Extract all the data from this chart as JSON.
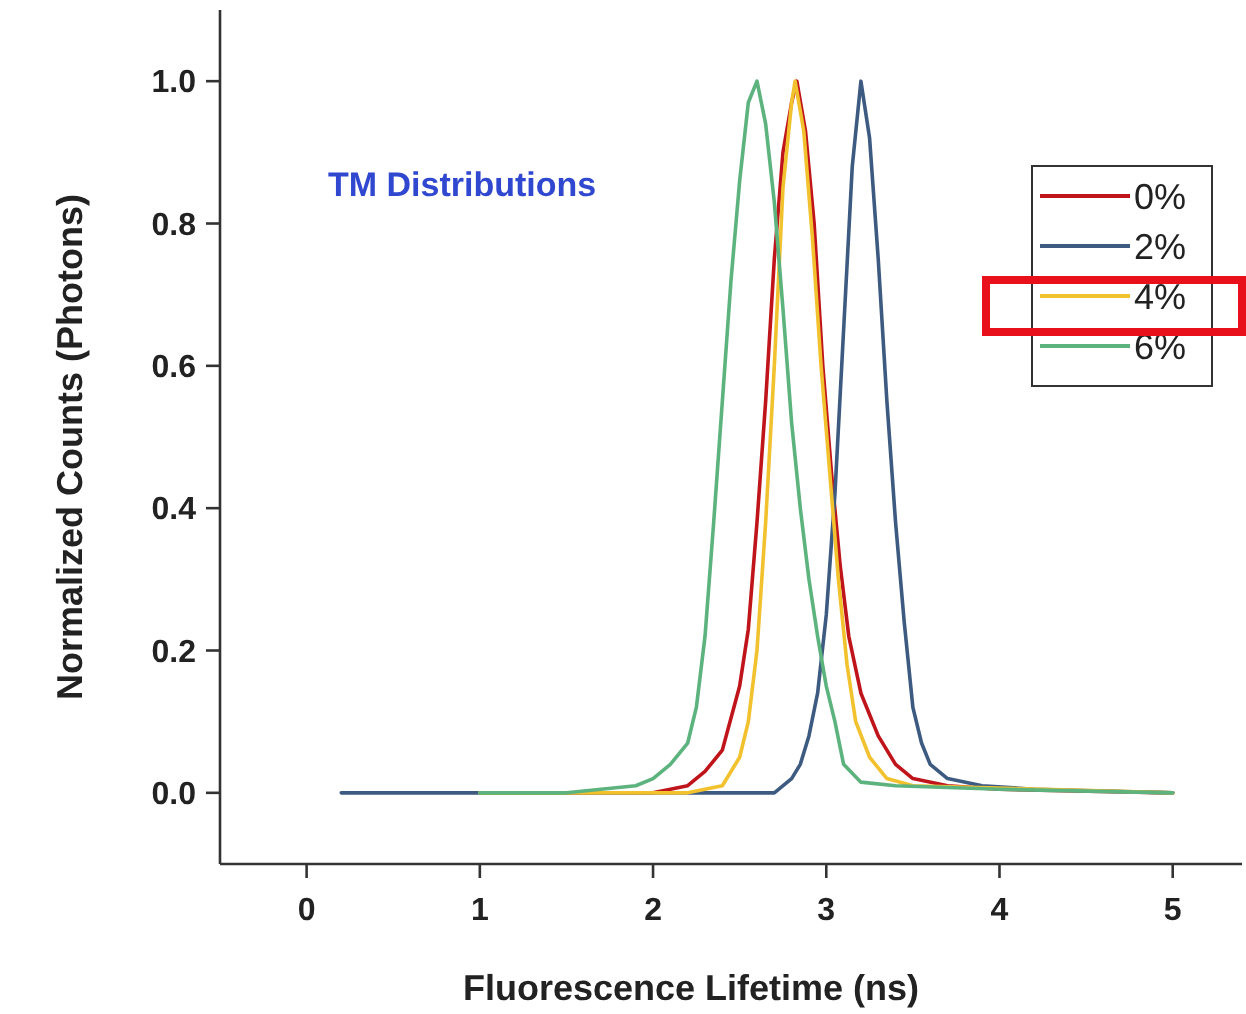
{
  "chart_data": {
    "type": "line",
    "xlabel": "Fluorescence Lifetime (ns)",
    "ylabel": "Normalized Counts (Photons)",
    "annotations": [
      "TM Distributions"
    ],
    "xlim": [
      -0.5,
      5.4
    ],
    "xticks": [
      0,
      1,
      2,
      3,
      4,
      5
    ],
    "ylim": [
      -0.1,
      1.1
    ],
    "yticks": [
      {
        "value": 0,
        "label": "0.0"
      },
      {
        "value": 0.2,
        "label": "0.2"
      },
      {
        "value": 0.4,
        "label": "0.4"
      },
      {
        "value": 0.6,
        "label": "0.6"
      },
      {
        "value": 0.8,
        "label": "0.8"
      },
      {
        "value": 1,
        "label": "1.0"
      }
    ],
    "grid": false,
    "legend": "top right",
    "line_style": "solid",
    "marker": "none",
    "series": [
      {
        "name": "0%",
        "color": "#c0141b",
        "x": [
          1.0,
          2.0,
          2.2,
          2.3,
          2.4,
          2.5,
          2.55,
          2.6,
          2.65,
          2.7,
          2.75,
          2.8,
          2.83,
          2.88,
          2.93,
          2.98,
          3.03,
          3.08,
          3.13,
          3.2,
          3.3,
          3.4,
          3.5,
          3.7,
          4.0,
          5.0
        ],
        "values": [
          0,
          0,
          0.01,
          0.03,
          0.06,
          0.15,
          0.23,
          0.38,
          0.55,
          0.75,
          0.9,
          0.97,
          1.0,
          0.93,
          0.8,
          0.6,
          0.45,
          0.32,
          0.22,
          0.14,
          0.08,
          0.04,
          0.02,
          0.01,
          0.005,
          0
        ]
      },
      {
        "name": "2%",
        "color": "#3d5a80",
        "x": [
          0.2,
          2.7,
          2.8,
          2.85,
          2.9,
          2.95,
          3.0,
          3.05,
          3.1,
          3.15,
          3.2,
          3.25,
          3.3,
          3.35,
          3.4,
          3.45,
          3.5,
          3.55,
          3.6,
          3.7,
          3.9,
          4.2,
          5.0
        ],
        "values": [
          0,
          0,
          0.02,
          0.04,
          0.08,
          0.14,
          0.25,
          0.42,
          0.65,
          0.88,
          1.0,
          0.92,
          0.75,
          0.55,
          0.38,
          0.24,
          0.12,
          0.07,
          0.04,
          0.02,
          0.01,
          0.005,
          0
        ]
      },
      {
        "name": "4%",
        "color": "#f2c12e",
        "x": [
          1.0,
          2.2,
          2.4,
          2.5,
          2.55,
          2.6,
          2.65,
          2.7,
          2.75,
          2.8,
          2.82,
          2.87,
          2.92,
          2.97,
          3.02,
          3.07,
          3.12,
          3.17,
          3.25,
          3.35,
          3.5,
          5.0
        ],
        "values": [
          0,
          0,
          0.01,
          0.05,
          0.1,
          0.2,
          0.38,
          0.6,
          0.85,
          0.97,
          1.0,
          0.93,
          0.78,
          0.6,
          0.45,
          0.3,
          0.18,
          0.1,
          0.05,
          0.02,
          0.01,
          0
        ]
      },
      {
        "name": "6%",
        "color": "#5db37e",
        "x": [
          1.0,
          1.5,
          1.7,
          1.9,
          2.0,
          2.1,
          2.2,
          2.25,
          2.3,
          2.35,
          2.4,
          2.45,
          2.5,
          2.55,
          2.6,
          2.65,
          2.7,
          2.75,
          2.8,
          2.85,
          2.9,
          2.95,
          3.0,
          3.05,
          3.1,
          3.2,
          3.4,
          4.0,
          5.0
        ],
        "values": [
          0,
          0,
          0.005,
          0.01,
          0.02,
          0.04,
          0.07,
          0.12,
          0.22,
          0.38,
          0.55,
          0.72,
          0.86,
          0.97,
          1.0,
          0.94,
          0.83,
          0.68,
          0.52,
          0.4,
          0.3,
          0.22,
          0.15,
          0.1,
          0.04,
          0.015,
          0.01,
          0.005,
          0
        ]
      }
    ]
  }
}
